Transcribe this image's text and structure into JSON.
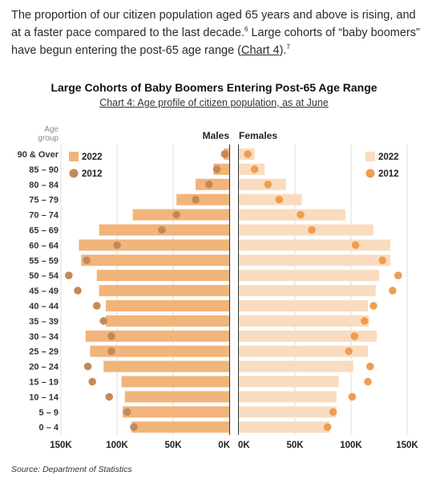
{
  "intro": {
    "part1": "The proportion of our citizen population aged 65 years and above is rising, and at a faster pace compared to the last decade.",
    "fn1": "6",
    "part2": " Large cohorts of “baby boomers” have begun entering the post-65 age range (",
    "link": "Chart 4",
    "part3": ").",
    "fn2": "7"
  },
  "source": "Source: Department of Statistics",
  "colors": {
    "male_2022": "#f2b47a",
    "male_2012": "#c28a5a",
    "female_2022": "#f9dcbf",
    "female_2012": "#ef9d52",
    "text": "#222222",
    "grid": "#dddddd"
  },
  "chart_data": {
    "type": "bar",
    "title": "Large Cohorts of Baby Boomers Entering Post-65 Age Range",
    "subtitle": "Chart 4: Age profile of citizen population, as at June",
    "ylabel_line1": "Age",
    "ylabel_line2": "group",
    "left_header": "Males",
    "right_header": "Females",
    "categories": [
      "90 & Over",
      "85 – 90",
      "80 – 84",
      "75 – 79",
      "70 – 74",
      "65 – 69",
      "60 – 64",
      "55 – 59",
      "50 – 54",
      "45 – 49",
      "40 – 44",
      "35 – 39",
      "30 – 34",
      "25 – 29",
      "20 – 24",
      "15 – 19",
      "10 – 14",
      "5 – 9",
      "0 – 4"
    ],
    "xlim": [
      0,
      150000
    ],
    "xticks": [
      150000,
      100000,
      50000,
      0
    ],
    "xtick_labels_left": [
      "150K",
      "100K",
      "50K",
      "0K"
    ],
    "xtick_labels_right": [
      "0K",
      "50K",
      "100K",
      "150K"
    ],
    "males": {
      "legend_bar": "2022",
      "legend_dot": "2012",
      "bars_2022": [
        5000,
        14000,
        30000,
        47000,
        86000,
        116000,
        134000,
        132000,
        118000,
        116000,
        110000,
        110000,
        128000,
        124000,
        112000,
        96000,
        93000,
        95000,
        87000
      ],
      "dots_2012": [
        4000,
        11000,
        18000,
        30000,
        47000,
        60000,
        100000,
        127000,
        143000,
        135000,
        118000,
        112000,
        105000,
        105000,
        126000,
        122000,
        107000,
        91000,
        85000
      ]
    },
    "females": {
      "legend_bar": "2022",
      "legend_dot": "2012",
      "bars_2022": [
        14000,
        23000,
        42000,
        56000,
        95000,
        120000,
        135000,
        135000,
        125000,
        122000,
        115000,
        116000,
        123000,
        115000,
        102000,
        89000,
        87000,
        87000,
        81000
      ],
      "dots_2012": [
        8000,
        14000,
        26000,
        36000,
        55000,
        65000,
        104000,
        128000,
        142000,
        137000,
        120000,
        112000,
        103000,
        98000,
        117000,
        115000,
        101000,
        84000,
        79000
      ]
    }
  }
}
